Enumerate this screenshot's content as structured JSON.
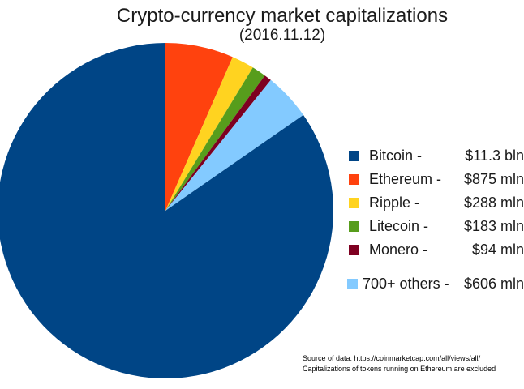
{
  "header": {
    "title": "Crypto-currency market capitalizations",
    "subtitle": "(2016.11.12)"
  },
  "legend": [
    {
      "name": "Bitcoin -",
      "value": "$11.3 bln",
      "color": "#004586"
    },
    {
      "name": "Ethereum -",
      "value": "$875 mln",
      "color": "#FF420E"
    },
    {
      "name": "Ripple -",
      "value": "$288 mln",
      "color": "#FFD320"
    },
    {
      "name": "Litecoin -",
      "value": "$183 mln",
      "color": "#579D1C"
    },
    {
      "name": "Monero -",
      "value": "$94 mln",
      "color": "#7E0021"
    },
    {
      "name": "700+ others -",
      "value": "$606 mln",
      "color": "#83CAFF"
    }
  ],
  "footnote": {
    "line1": "Source of data: https://coinmarketcap.com/all/views/all/",
    "line2": "Capitalizations of tokens running on Ethereum are excluded"
  },
  "chart_data": {
    "type": "pie",
    "title": "Crypto-currency market capitalizations",
    "subtitle": "(2016.11.12)",
    "units": "USD millions",
    "start": "top",
    "direction": "clockwise",
    "slices": [
      {
        "name": "Ethereum",
        "value": 875,
        "label": "$875 mln",
        "color": "#FF420E"
      },
      {
        "name": "Ripple",
        "value": 288,
        "label": "$288 mln",
        "color": "#FFD320"
      },
      {
        "name": "Litecoin",
        "value": 183,
        "label": "$183 mln",
        "color": "#579D1C"
      },
      {
        "name": "Monero",
        "value": 94,
        "label": "$94 mln",
        "color": "#7E0021"
      },
      {
        "name": "700+ others",
        "value": 606,
        "label": "$606 mln",
        "color": "#83CAFF"
      },
      {
        "name": "Bitcoin",
        "value": 11300,
        "label": "$11.3 bln",
        "color": "#004586"
      }
    ],
    "legend_order": [
      "Bitcoin",
      "Ethereum",
      "Ripple",
      "Litecoin",
      "Monero",
      "700+ others"
    ],
    "source_note": [
      "Source of data: https://coinmarketcap.com/all/views/all/",
      "Capitalizations of tokens running on Ethereum are excluded"
    ]
  }
}
